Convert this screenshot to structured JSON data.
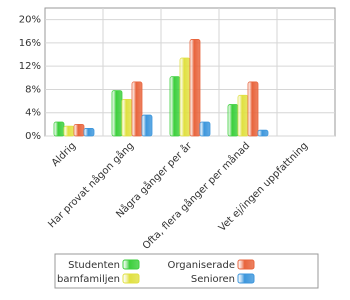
{
  "chart_data": {
    "type": "bar",
    "categories": [
      "Aldrig",
      "Har provat någon gång",
      "Några gånger per år",
      "Ofta, flera gånger per månad",
      "Vet ej/ingen uppfattning"
    ],
    "series": [
      {
        "name": "Studenten",
        "color": "#3ccf3c",
        "values": [
          2.4,
          7.8,
          10.2,
          5.4,
          0
        ]
      },
      {
        "name": "barnfamiljen",
        "color": "#e0e040",
        "values": [
          1.7,
          6.3,
          13.4,
          7.0,
          0
        ]
      },
      {
        "name": "Organiserade",
        "color": "#e8643c",
        "values": [
          2.0,
          9.3,
          16.6,
          9.3,
          0
        ]
      },
      {
        "name": "Senioren",
        "color": "#3c96dc",
        "values": [
          1.3,
          3.6,
          2.4,
          1.0,
          0
        ]
      }
    ],
    "ylim": [
      0,
      22
    ],
    "yticks": [
      {
        "value": 0,
        "label": "0%"
      },
      {
        "value": 4,
        "label": "4%"
      },
      {
        "value": 8,
        "label": "8%"
      },
      {
        "value": 12,
        "label": "12%"
      },
      {
        "value": 16,
        "label": "16%"
      },
      {
        "value": 20,
        "label": "20%"
      }
    ],
    "grid": true
  }
}
